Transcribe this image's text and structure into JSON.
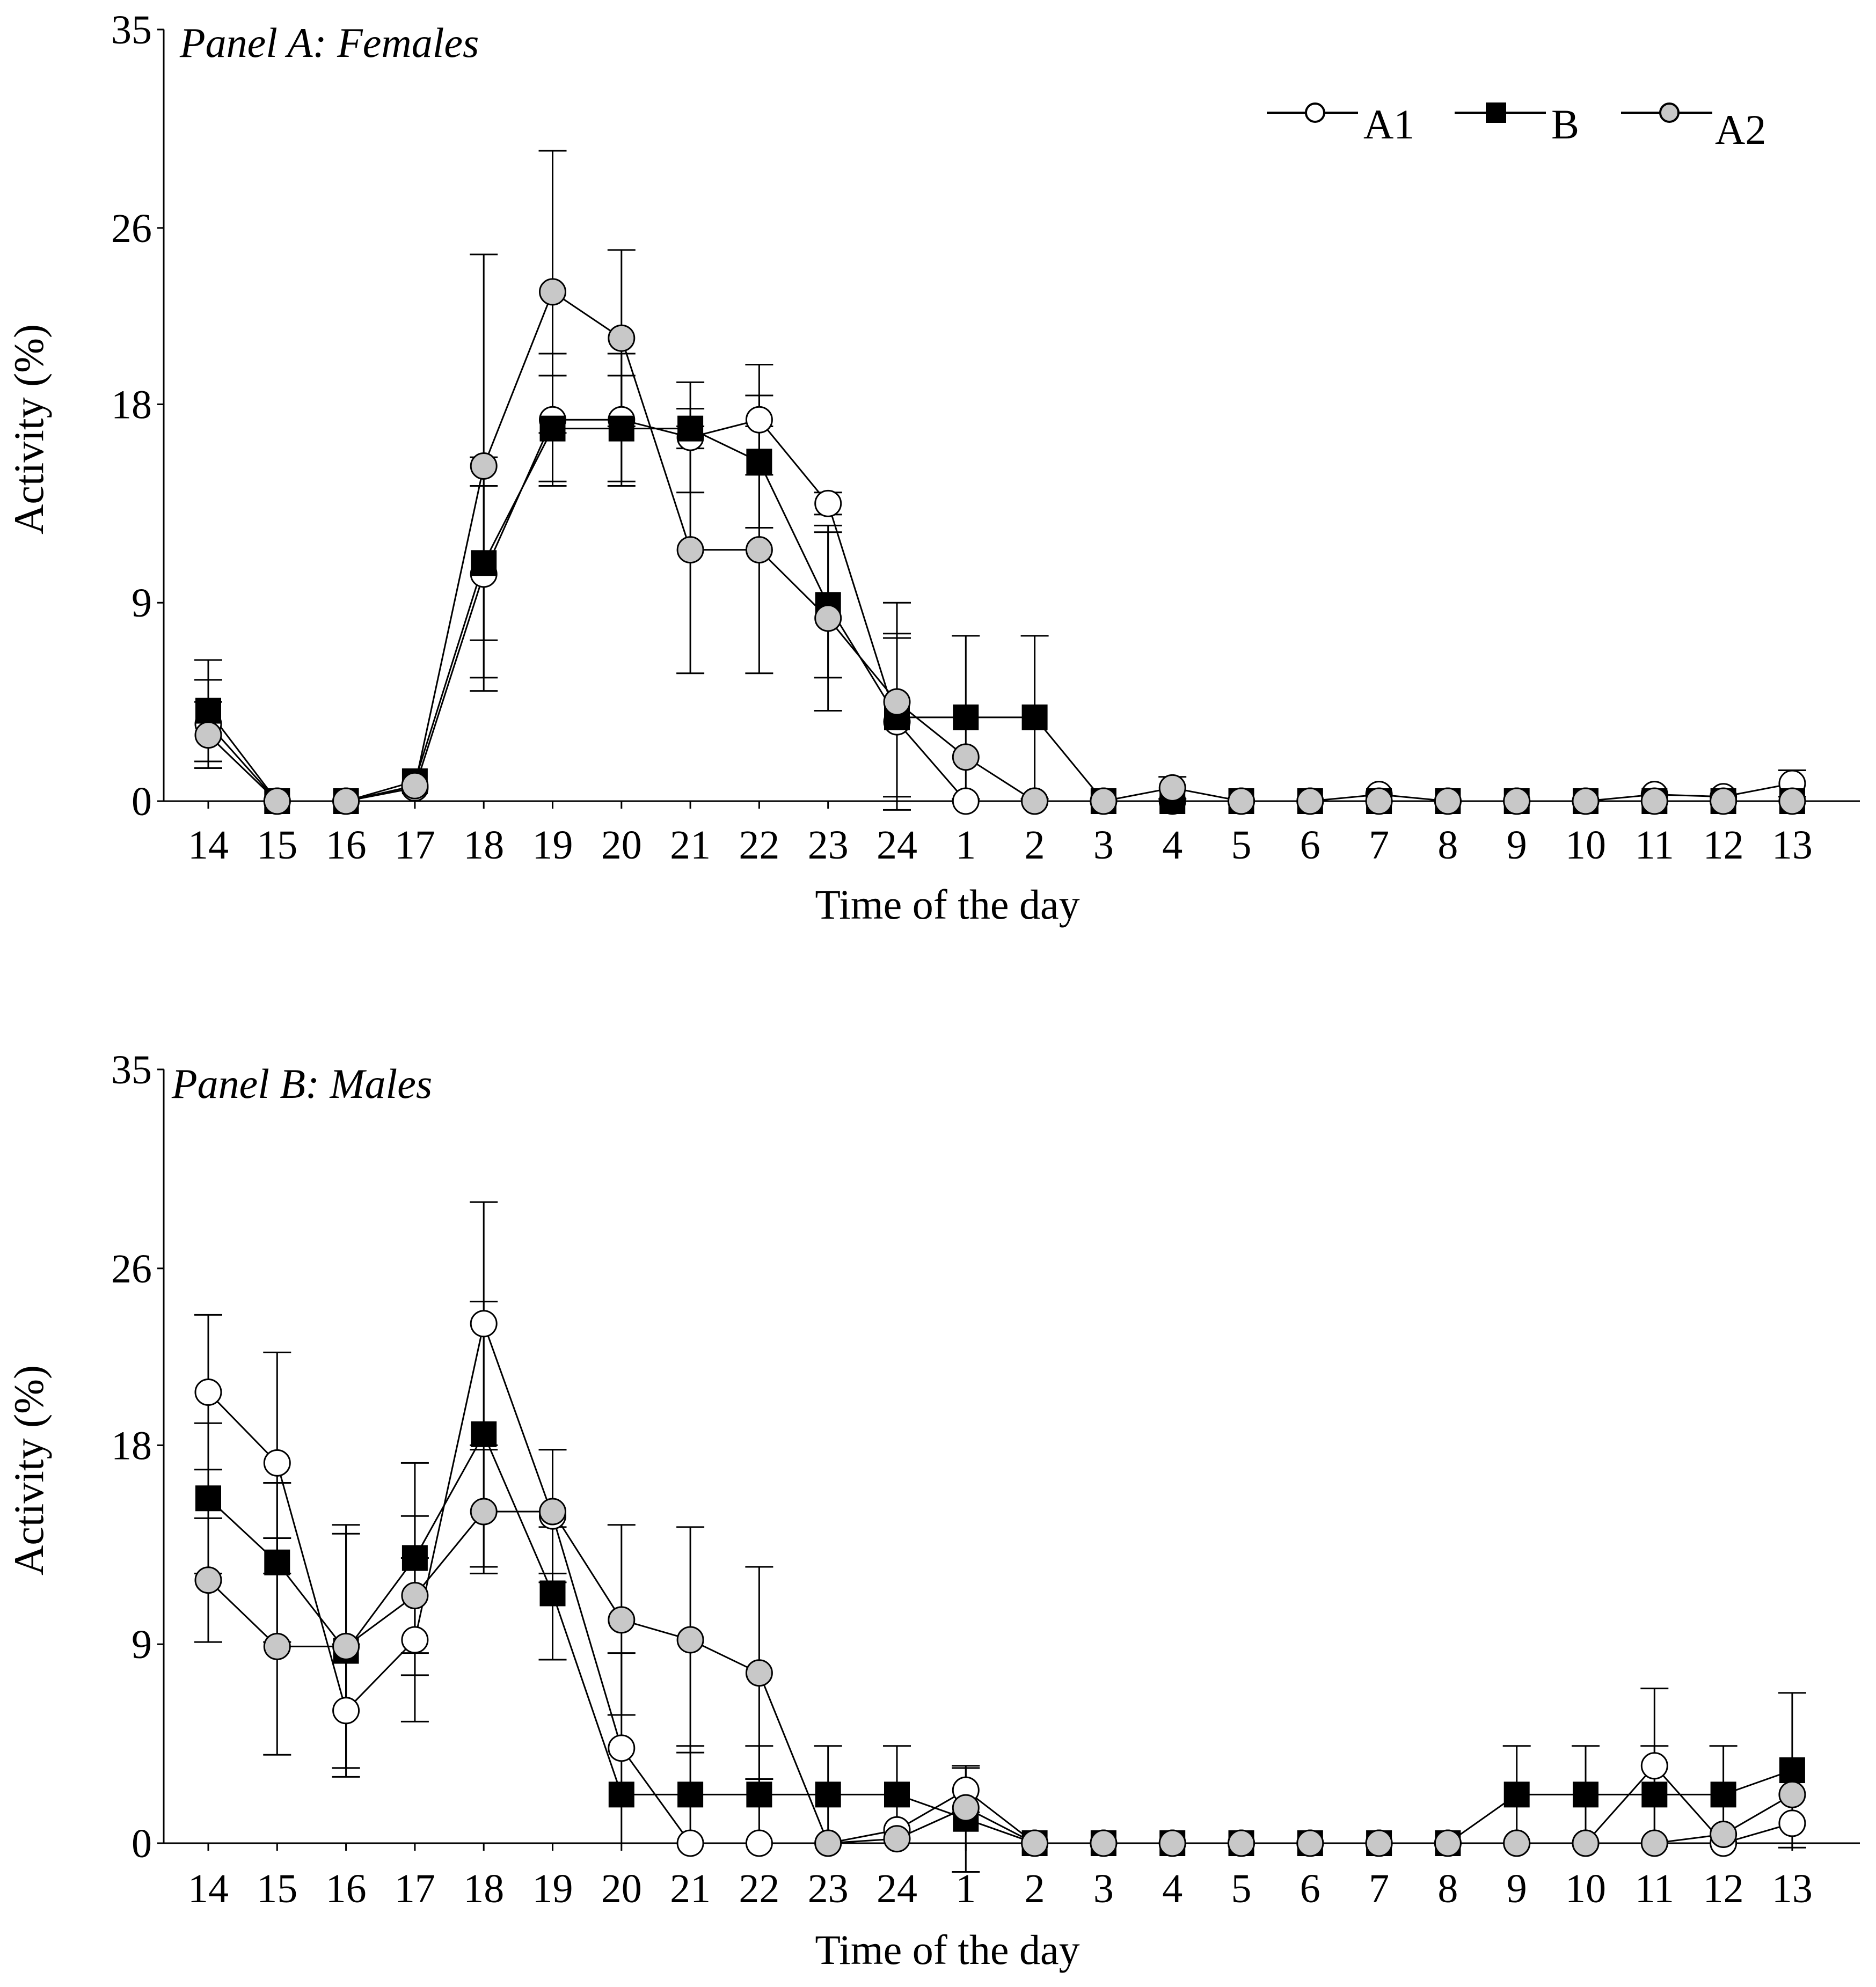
{
  "chart_data": [
    {
      "type": "line",
      "title": "Panel A: Females",
      "xlabel": "Time of the day",
      "ylabel": "Activity (%)",
      "ylim": [
        0,
        35
      ],
      "yticks": [
        "0",
        "9",
        "18",
        "26",
        "35"
      ],
      "categories": [
        "14",
        "15",
        "16",
        "17",
        "18",
        "19",
        "20",
        "21",
        "22",
        "23",
        "24",
        "1",
        "2",
        "3",
        "4",
        "5",
        "6",
        "7",
        "8",
        "9",
        "10",
        "11",
        "12",
        "13"
      ],
      "legend": {
        "position": "top-right",
        "entries": [
          "A1",
          "B",
          "A2"
        ]
      },
      "series": [
        {
          "name": "A1",
          "marker": "open-circle",
          "values": [
            3.5,
            0,
            0,
            0.6,
            10.3,
            17.3,
            17.3,
            16.5,
            17.3,
            13.5,
            3.6,
            0,
            0,
            0,
            0,
            0,
            0,
            0.3,
            0,
            0,
            0,
            0.3,
            0.2,
            0.8
          ],
          "errors": [
            2.0,
            0,
            0,
            0,
            5.3,
            3.0,
            3.0,
            2.5,
            2.5,
            0.5,
            4.0,
            0,
            0,
            0,
            0,
            0,
            0,
            0,
            0,
            0,
            0,
            0,
            0,
            0.6
          ]
        },
        {
          "name": "B",
          "marker": "filled-square",
          "values": [
            4.1,
            0,
            0,
            0.9,
            10.8,
            16.9,
            16.9,
            16.9,
            15.4,
            8.9,
            3.8,
            3.8,
            3.8,
            0,
            0,
            0,
            0,
            0,
            0,
            0,
            0,
            0,
            0,
            0
          ],
          "errors": [
            2.3,
            0,
            0,
            0,
            3.5,
            2.4,
            2.4,
            0.9,
            3.0,
            3.3,
            3.6,
            3.7,
            3.7,
            0,
            0,
            0,
            0,
            0,
            0,
            0,
            0,
            0,
            0,
            0
          ]
        },
        {
          "name": "A2",
          "marker": "grey-circle",
          "values": [
            3.0,
            0,
            0,
            0.7,
            15.2,
            23.1,
            21.0,
            11.4,
            11.4,
            8.3,
            4.5,
            2.0,
            0,
            0,
            0.6,
            0,
            0,
            0,
            0,
            0,
            0,
            0,
            0,
            0
          ],
          "errors": [
            1.5,
            0,
            0,
            0,
            9.6,
            6.4,
            4.0,
            5.6,
            5.6,
            4.2,
            4.5,
            0,
            0,
            0,
            0.5,
            0,
            0,
            0,
            0,
            0,
            0,
            0,
            0,
            0
          ]
        }
      ]
    },
    {
      "type": "line",
      "title": "Panel B: Males",
      "xlabel": "Time of the day",
      "ylabel": "Activity (%)",
      "ylim": [
        0,
        35
      ],
      "yticks": [
        "0",
        "9",
        "18",
        "26",
        "35"
      ],
      "categories": [
        "14",
        "15",
        "16",
        "17",
        "18",
        "19",
        "20",
        "21",
        "22",
        "23",
        "24",
        "1",
        "2",
        "3",
        "4",
        "5",
        "6",
        "7",
        "8",
        "9",
        "10",
        "11",
        "12",
        "13"
      ],
      "series": [
        {
          "name": "A1",
          "marker": "open-circle",
          "values": [
            20.4,
            17.2,
            6.0,
            9.2,
            23.5,
            14.8,
            4.3,
            0,
            0,
            0,
            0.6,
            2.4,
            0,
            0,
            0,
            0,
            0,
            0,
            0,
            0,
            0,
            3.5,
            0,
            0.9
          ],
          "errors": [
            3.5,
            5.0,
            3.0,
            3.7,
            5.5,
            3.0,
            4.3,
            0,
            0,
            0,
            0,
            1.0,
            0,
            0,
            0,
            0,
            0,
            0,
            0,
            0,
            0,
            3.5,
            0,
            0
          ]
        },
        {
          "name": "B",
          "marker": "filled-square",
          "values": [
            15.6,
            12.7,
            8.7,
            12.9,
            18.5,
            11.3,
            2.2,
            2.2,
            2.2,
            2.2,
            2.2,
            1.1,
            0,
            0,
            0,
            0,
            0,
            0,
            0,
            2.2,
            2.2,
            2.2,
            2.2,
            3.3
          ],
          "errors": [
            3.4,
            3.6,
            5.3,
            4.3,
            6.0,
            3.0,
            0,
            2.2,
            2.2,
            2.2,
            2.2,
            2.4,
            0,
            0,
            0,
            0,
            0,
            0,
            0,
            2.2,
            2.2,
            2.2,
            2.2,
            3.5
          ]
        },
        {
          "name": "A2",
          "marker": "grey-circle",
          "values": [
            11.9,
            8.9,
            8.9,
            11.2,
            15.0,
            15.0,
            10.1,
            9.2,
            7.7,
            0,
            0.2,
            1.6,
            0,
            0,
            0,
            0,
            0,
            0,
            0,
            0,
            0,
            0,
            0.4,
            2.2
          ],
          "errors": [
            2.8,
            4.9,
            5.5,
            3.6,
            2.8,
            2.8,
            4.3,
            5.1,
            4.8,
            0,
            0,
            0,
            0,
            0,
            0,
            0,
            0,
            0,
            0,
            0,
            0,
            0,
            0,
            0
          ]
        }
      ]
    }
  ]
}
